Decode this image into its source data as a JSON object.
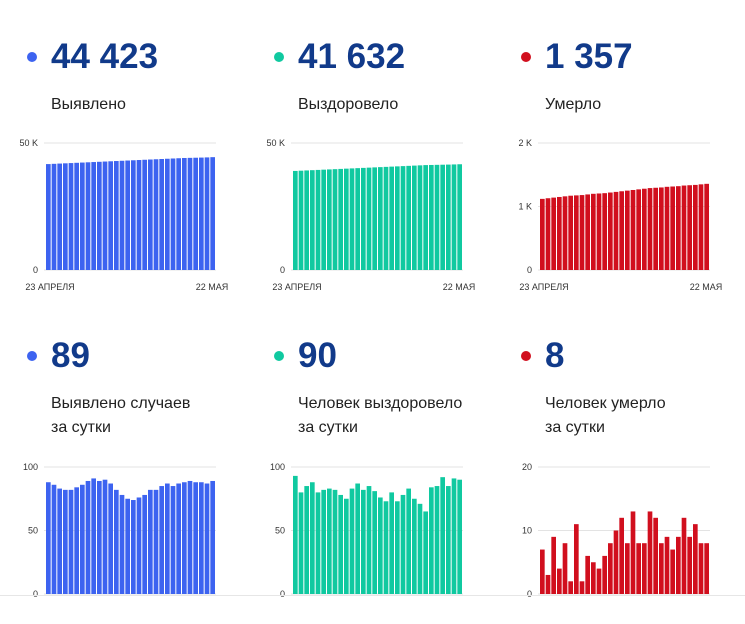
{
  "panels": [
    {
      "value": "44 423",
      "label_lines": [
        "Выявлено"
      ],
      "color": "#3d63f0",
      "chart_data": {
        "type": "bar",
        "ylim": [
          0,
          50000
        ],
        "yticks": [
          {
            "v": 0,
            "t": "0"
          },
          {
            "v": 50000,
            "t": "50 K"
          }
        ],
        "x_start_label": "23 АПРЕЛЯ",
        "x_end_label": "22 МАЯ",
        "values": [
          41700,
          41800,
          41900,
          42000,
          42100,
          42200,
          42300,
          42400,
          42500,
          42600,
          42700,
          42800,
          42900,
          43000,
          43100,
          43200,
          43300,
          43400,
          43500,
          43600,
          43700,
          43800,
          43900,
          44000,
          44100,
          44150,
          44200,
          44260,
          44330,
          44423
        ]
      }
    },
    {
      "value": "41 632",
      "label_lines": [
        "Выздоровело"
      ],
      "color": "#10c9a0",
      "chart_data": {
        "type": "bar",
        "ylim": [
          0,
          50000
        ],
        "yticks": [
          {
            "v": 0,
            "t": "0"
          },
          {
            "v": 50000,
            "t": "50 K"
          }
        ],
        "x_start_label": "23 АПРЕЛЯ",
        "x_end_label": "22 МАЯ",
        "values": [
          39000,
          39100,
          39200,
          39300,
          39400,
          39500,
          39600,
          39700,
          39800,
          39900,
          40000,
          40100,
          40200,
          40300,
          40400,
          40500,
          40600,
          40700,
          40800,
          40900,
          41000,
          41100,
          41200,
          41300,
          41350,
          41400,
          41450,
          41500,
          41560,
          41632
        ]
      }
    },
    {
      "value": "1 357",
      "label_lines": [
        "Умерло"
      ],
      "color": "#d10f1e",
      "chart_data": {
        "type": "bar",
        "ylim": [
          0,
          2000
        ],
        "yticks": [
          {
            "v": 0,
            "t": "0"
          },
          {
            "v": 1000,
            "t": "1 K"
          },
          {
            "v": 2000,
            "t": "2 K"
          }
        ],
        "x_start_label": "23 АПРЕЛЯ",
        "x_end_label": "22 МАЯ",
        "values": [
          1120,
          1130,
          1140,
          1150,
          1160,
          1170,
          1175,
          1180,
          1190,
          1200,
          1205,
          1210,
          1220,
          1230,
          1240,
          1250,
          1260,
          1270,
          1280,
          1290,
          1295,
          1300,
          1310,
          1315,
          1320,
          1330,
          1335,
          1340,
          1349,
          1357
        ]
      }
    },
    {
      "value": "89",
      "label_lines": [
        "Выявлено случаев",
        "за сутки"
      ],
      "color": "#3d63f0",
      "chart_data": {
        "type": "bar",
        "ylim": [
          0,
          100
        ],
        "yticks": [
          {
            "v": 0,
            "t": "0"
          },
          {
            "v": 50,
            "t": "50"
          },
          {
            "v": 100,
            "t": "100"
          }
        ],
        "values": [
          88,
          86,
          83,
          82,
          82,
          84,
          86,
          89,
          91,
          89,
          90,
          87,
          82,
          78,
          75,
          74,
          76,
          78,
          82,
          82,
          85,
          87,
          85,
          87,
          88,
          89,
          88,
          88,
          87,
          89
        ]
      }
    },
    {
      "value": "90",
      "label_lines": [
        "Человек выздоровело",
        "за сутки"
      ],
      "color": "#10c9a0",
      "chart_data": {
        "type": "bar",
        "ylim": [
          0,
          100
        ],
        "yticks": [
          {
            "v": 0,
            "t": "0"
          },
          {
            "v": 50,
            "t": "50"
          },
          {
            "v": 100,
            "t": "100"
          }
        ],
        "values": [
          93,
          80,
          85,
          88,
          80,
          82,
          83,
          82,
          78,
          75,
          83,
          87,
          82,
          85,
          81,
          76,
          73,
          80,
          73,
          78,
          83,
          75,
          71,
          65,
          84,
          85,
          92,
          85,
          91,
          90
        ]
      }
    },
    {
      "value": "8",
      "label_lines": [
        "Человек умерло",
        "за сутки"
      ],
      "color": "#d10f1e",
      "chart_data": {
        "type": "bar",
        "ylim": [
          0,
          20
        ],
        "yticks": [
          {
            "v": 0,
            "t": "0"
          },
          {
            "v": 10,
            "t": "10"
          },
          {
            "v": 20,
            "t": "20"
          }
        ],
        "values": [
          7,
          3,
          9,
          4,
          8,
          2,
          11,
          2,
          6,
          5,
          4,
          6,
          8,
          10,
          12,
          8,
          13,
          8,
          8,
          13,
          12,
          8,
          9,
          7,
          9,
          12,
          9,
          11,
          8,
          8
        ]
      }
    }
  ]
}
